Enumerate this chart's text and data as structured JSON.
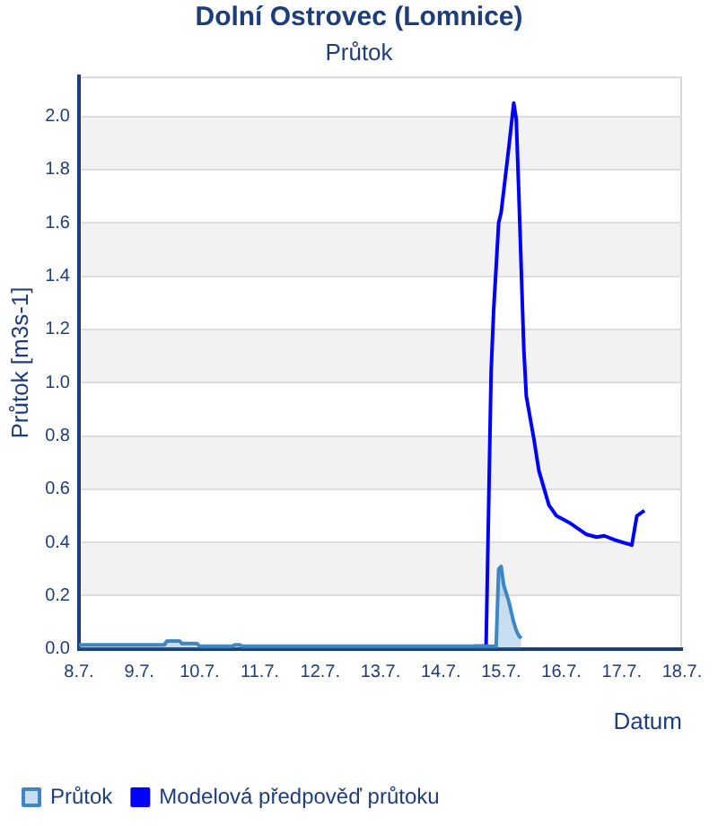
{
  "chart_data": {
    "type": "line",
    "title": "Dolní Ostrovec (Lomnice)",
    "subtitle": "Průtok",
    "xlabel": "Datum",
    "ylabel": "Průtok [m3s-1]",
    "xlim": [
      "--07-08",
      "--07-18"
    ],
    "xticks": [
      {
        "value": "--07-08",
        "label": "8.7."
      },
      {
        "value": "--07-09",
        "label": "9.7."
      },
      {
        "value": "--07-10",
        "label": "10.7."
      },
      {
        "value": "--07-11",
        "label": "11.7."
      },
      {
        "value": "--07-12",
        "label": "12.7."
      },
      {
        "value": "--07-13",
        "label": "13.7."
      },
      {
        "value": "--07-14",
        "label": "14.7."
      },
      {
        "value": "--07-15",
        "label": "15.7."
      },
      {
        "value": "--07-16",
        "label": "16.7."
      },
      {
        "value": "--07-17",
        "label": "17.7."
      },
      {
        "value": "--07-18",
        "label": "18.7."
      }
    ],
    "ylim": [
      0,
      2.15
    ],
    "yticks": [
      {
        "value": 0,
        "label": "0.0"
      },
      0.2,
      0.4,
      0.6,
      0.8,
      {
        "value": 1,
        "label": "1.0"
      },
      1.2,
      1.4,
      1.6,
      1.8,
      {
        "value": 2,
        "label": "2.0"
      }
    ],
    "grid": "y",
    "legend": "bottom left",
    "marker": "none",
    "line_style": "solid",
    "bands": [
      {
        "axis": "y",
        "from": 0.2,
        "to": 0.4,
        "color": "#f2f2f2"
      },
      {
        "axis": "y",
        "from": 0.6,
        "to": 0.8,
        "color": "#f2f2f2"
      },
      {
        "axis": "y",
        "from": 1.0,
        "to": 1.2,
        "color": "#f2f2f2"
      },
      {
        "axis": "y",
        "from": 1.4,
        "to": 1.6,
        "color": "#f2f2f2"
      },
      {
        "axis": "y",
        "from": 1.8,
        "to": 2.0,
        "color": "#f2f2f2"
      }
    ],
    "series": [
      {
        "name": "Průtok",
        "type": "area",
        "color": "#3d87c4",
        "x": [
          "--07-08T00:00",
          "--07-09T10:00",
          "--07-09T11:00",
          "--07-09T16:00",
          "--07-09T17:00",
          "--07-09T23:00",
          "--07-10T00:00",
          "--07-10T13:00",
          "--07-10T14:00",
          "--07-10T16:00",
          "--07-10T17:00",
          "--07-14T22:00",
          "--07-14T23:00",
          "--07-15T00:00",
          "--07-15T01:00",
          "--07-15T03:00",
          "--07-15T05:00",
          "--07-15T06:00",
          "--07-15T07:00",
          "--07-15T08:00"
        ],
        "values": [
          0.015,
          0.015,
          0.03,
          0.03,
          0.02,
          0.02,
          0.01,
          0.01,
          0.015,
          0.015,
          0.01,
          0.01,
          0.3,
          0.31,
          0.24,
          0.18,
          0.1,
          0.07,
          0.05,
          0.04
        ]
      },
      {
        "name": "Modelová předpověď průtoku",
        "type": "line",
        "color": "#0000ff",
        "x": [
          "--07-14T13:00",
          "--07-14T18:00",
          "--07-14T20:00",
          "--07-14T21:00",
          "--07-14T23:00",
          "--07-15T00:00",
          "--07-15T03:00",
          "--07-15T05:00",
          "--07-15T06:00",
          "--07-15T07:00",
          "--07-15T09:00",
          "--07-15T10:00",
          "--07-15T13:00",
          "--07-15T15:00",
          "--07-15T19:00",
          "--07-15T22:00",
          "--07-16T03:00",
          "--07-16T10:00",
          "--07-16T14:00",
          "--07-16T17:00",
          "--07-16T21:00",
          "--07-17T04:00",
          "--07-17T06:00",
          "--07-17T09:00"
        ],
        "values": [
          0.01,
          0.01,
          1.04,
          1.27,
          1.6,
          1.64,
          1.88,
          2.05,
          1.99,
          1.72,
          1.13,
          0.95,
          0.79,
          0.67,
          0.54,
          0.5,
          0.475,
          0.43,
          0.42,
          0.425,
          0.41,
          0.39,
          0.5,
          0.52
        ]
      }
    ]
  }
}
